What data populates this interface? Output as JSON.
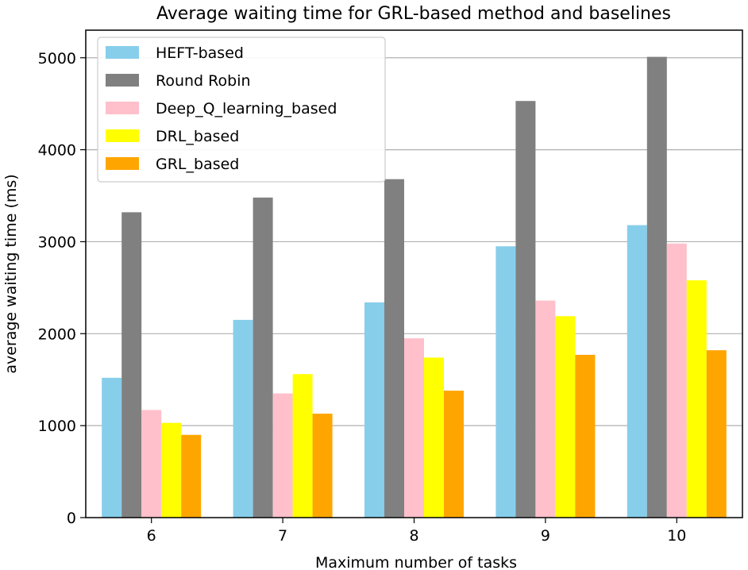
{
  "chart_data": {
    "type": "bar",
    "title": "Average waiting time for GRL-based method and baselines",
    "xlabel": "Maximum number of tasks",
    "ylabel": "average waiting time (ms)",
    "categories": [
      "6",
      "7",
      "8",
      "9",
      "10"
    ],
    "ylim": [
      0,
      5300
    ],
    "yticks": [
      0,
      1000,
      2000,
      3000,
      4000,
      5000
    ],
    "grid": "horizontal",
    "legend_position": "top-left",
    "series": [
      {
        "name": "HEFT-based",
        "color": "#87ceeb",
        "values": [
          1520,
          2150,
          2340,
          2950,
          3180
        ]
      },
      {
        "name": "Round Robin",
        "color": "#808080",
        "values": [
          3320,
          3480,
          3680,
          4530,
          5010
        ]
      },
      {
        "name": "Deep_Q_learning_based",
        "color": "#ffc0cb",
        "values": [
          1170,
          1350,
          1950,
          2360,
          2980
        ]
      },
      {
        "name": "DRL_based",
        "color": "#ffff00",
        "values": [
          1030,
          1560,
          1740,
          2190,
          2580
        ]
      },
      {
        "name": "GRL_based",
        "color": "#ffa500",
        "values": [
          900,
          1130,
          1380,
          1770,
          1820
        ]
      }
    ]
  }
}
